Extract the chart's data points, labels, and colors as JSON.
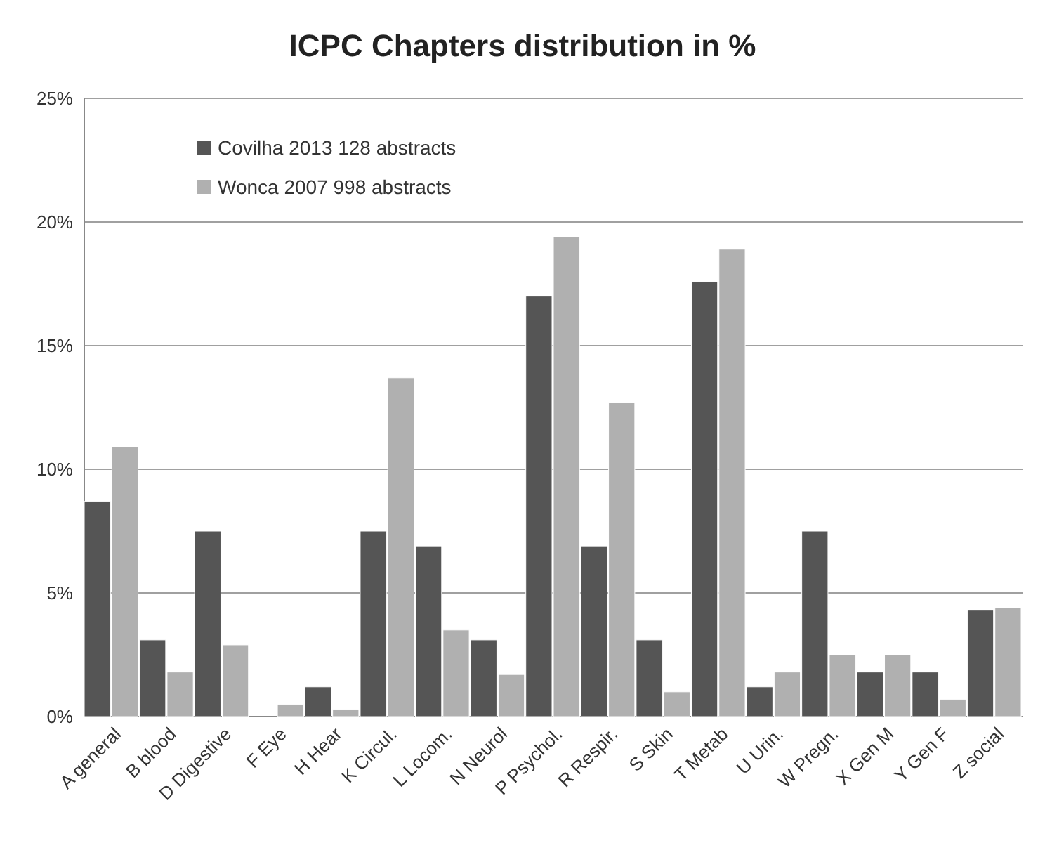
{
  "chart_data": {
    "type": "bar",
    "title": "ICPC Chapters distribution in %",
    "categories": [
      "A general",
      "B blood",
      "D Digestive",
      "F Eye",
      "H Hear",
      "K Circul.",
      "L Locom.",
      "N Neurol",
      "P Psychol.",
      "R Respir.",
      "S Skin",
      "T Metab",
      "U Urin.",
      "W Pregn.",
      "X Gen M",
      "Y Gen F",
      "Z social"
    ],
    "series": [
      {
        "name": "Covilha 2013 128 abstracts",
        "color": "#555555",
        "values": [
          8.7,
          3.1,
          7.5,
          0,
          1.2,
          7.5,
          6.9,
          3.1,
          17.0,
          6.9,
          3.1,
          17.6,
          1.2,
          7.5,
          1.8,
          1.8,
          4.3
        ]
      },
      {
        "name": "Wonca 2007 998 abstracts",
        "color": "#b0b0b0",
        "values": [
          10.9,
          1.8,
          2.9,
          0.5,
          0.3,
          13.7,
          3.5,
          1.7,
          19.4,
          12.7,
          1.0,
          18.9,
          1.8,
          2.5,
          2.5,
          0.7,
          4.4
        ]
      }
    ],
    "ylim": [
      0,
      25
    ],
    "yticks": [
      {
        "value": 0,
        "label": "0%"
      },
      {
        "value": 5,
        "label": "5%"
      },
      {
        "value": 10,
        "label": "10%"
      },
      {
        "value": 15,
        "label": "15%"
      },
      {
        "value": 20,
        "label": "20%"
      },
      {
        "value": 25,
        "label": "25%"
      }
    ],
    "grid": "y",
    "legend": "top left"
  }
}
